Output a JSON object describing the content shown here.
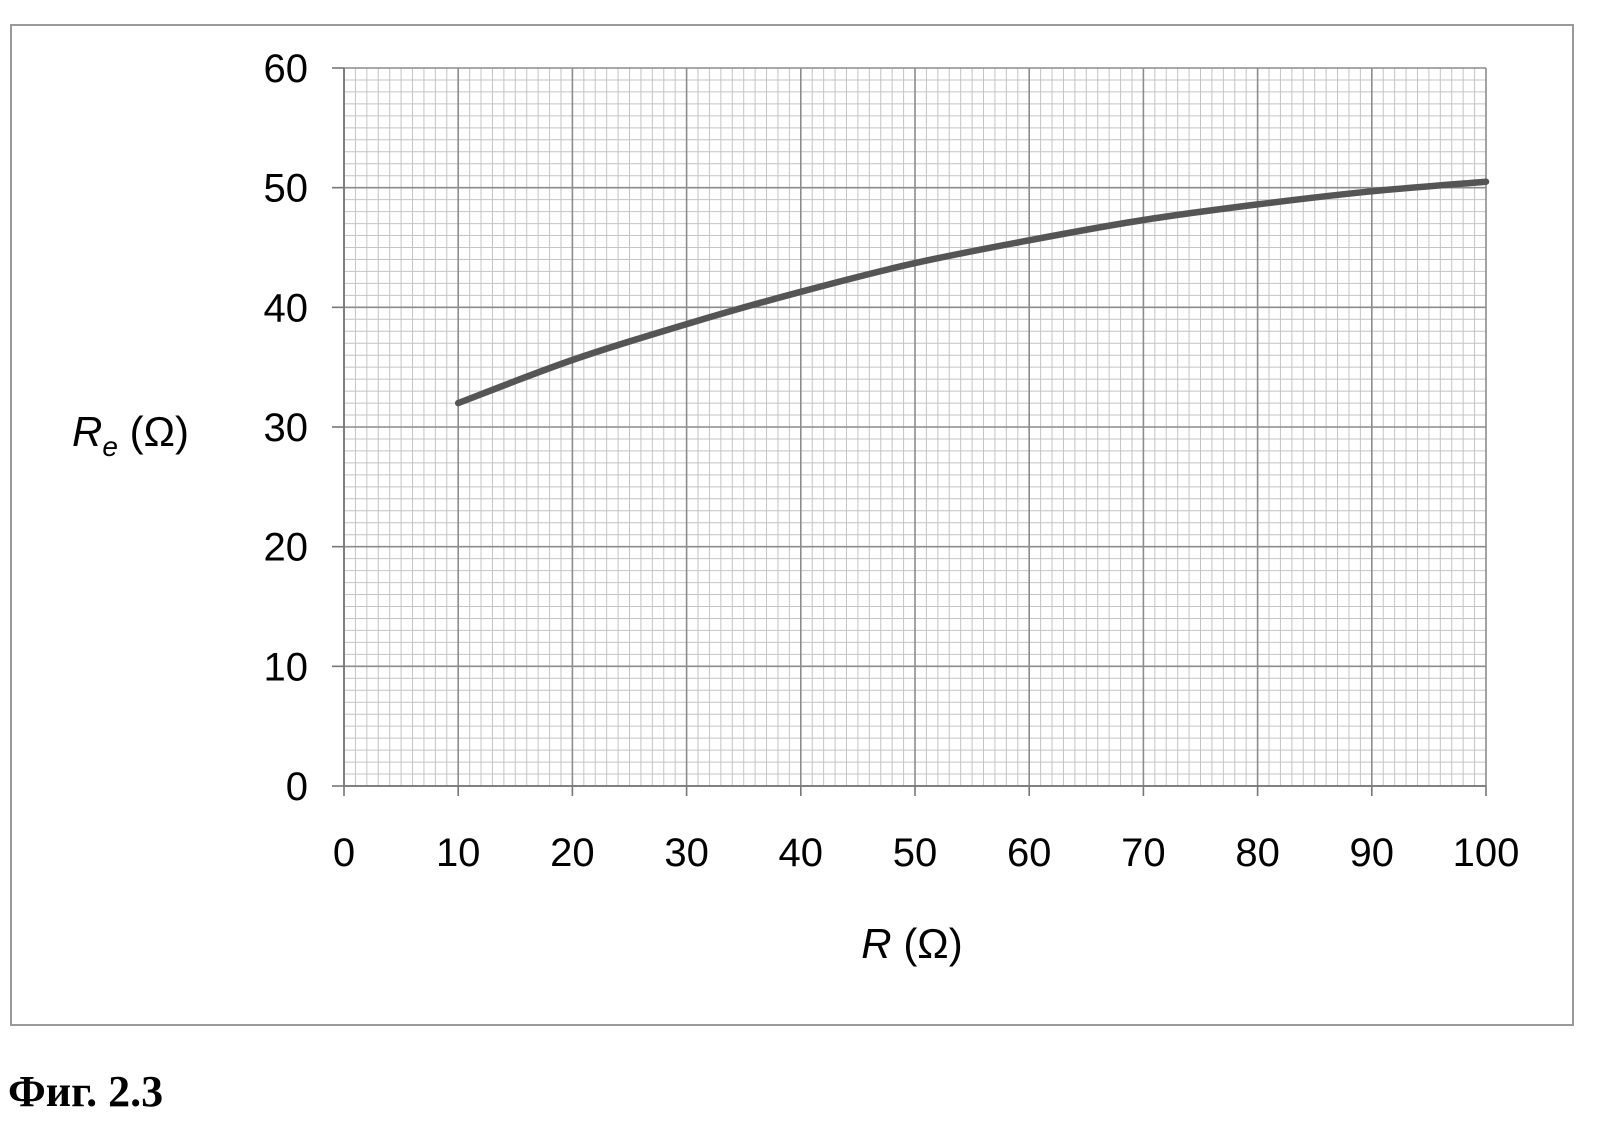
{
  "caption": "Фиг. 2.3",
  "chart_data": {
    "type": "line",
    "title": "",
    "xlabel": {
      "symbol": "R",
      "unit": "(Ω)"
    },
    "ylabel": {
      "symbol": "R",
      "subscript": "e",
      "unit": "(Ω)"
    },
    "xlim": [
      0,
      100
    ],
    "ylim": [
      0,
      60
    ],
    "x_ticks": [
      0,
      10,
      20,
      30,
      40,
      50,
      60,
      70,
      80,
      90,
      100
    ],
    "y_ticks": [
      0,
      10,
      20,
      30,
      40,
      50,
      60
    ],
    "grid": {
      "major": true,
      "minor": true,
      "minor_per_major": 10
    },
    "series": [
      {
        "x": [
          10,
          20,
          30,
          40,
          50,
          60,
          70,
          80,
          90,
          100
        ],
        "y": [
          32.0,
          35.6,
          38.6,
          41.3,
          43.7,
          45.6,
          47.3,
          48.6,
          49.7,
          50.5
        ]
      }
    ],
    "colors": {
      "line": "#555555",
      "major_grid": "#8c8c8c",
      "minor_grid": "#c4c4c4",
      "frame": "#9a9a9a"
    }
  }
}
